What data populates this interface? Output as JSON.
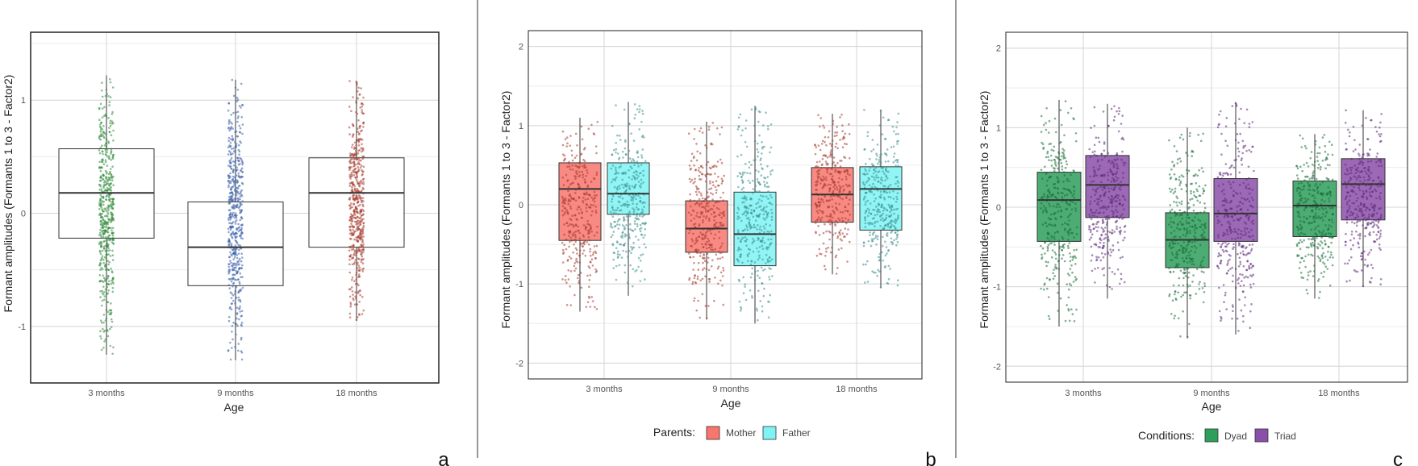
{
  "chart_data": [
    {
      "panel_label": "a",
      "type": "boxplot",
      "xlabel": "Age",
      "ylabel": "Formant amplitudes (Formants 1 to 3 - Factor2)",
      "categories": [
        "3 months",
        "9 months",
        "18 months"
      ],
      "yticks": [
        -1,
        0,
        1
      ],
      "ytick_labels": [
        "-1",
        "0",
        "1"
      ],
      "ylim": [
        -1.5,
        1.6
      ],
      "grid": true,
      "series": [
        {
          "name": "",
          "box_fill": "none",
          "point_color": "#2e8b3a",
          "point_colors": [
            "#2e8b3a",
            "#3a5fa8",
            "#a53a2e"
          ],
          "stats": [
            {
              "q1": -0.22,
              "median": 0.18,
              "q3": 0.57,
              "min": -1.25,
              "max": 1.22
            },
            {
              "q1": -0.64,
              "median": -0.3,
              "q3": 0.1,
              "min": -1.3,
              "max": 1.18
            },
            {
              "q1": -0.3,
              "median": 0.18,
              "q3": 0.49,
              "min": -0.95,
              "max": 1.17
            }
          ]
        }
      ]
    },
    {
      "panel_label": "b",
      "type": "boxplot",
      "xlabel": "Age",
      "ylabel": "Formant amplitudes (Formants 1 to 3 - Factor2)",
      "categories": [
        "3 months",
        "9 months",
        "18 months"
      ],
      "yticks": [
        -2,
        -1,
        0,
        1,
        2
      ],
      "ytick_labels": [
        "-2",
        "-1",
        "0",
        "1",
        "2"
      ],
      "ylim": [
        -2.2,
        2.2
      ],
      "grid": true,
      "legend_title": "Parents:",
      "legend_position": "bottom",
      "series": [
        {
          "name": "Mother",
          "box_fill": "#f8766d",
          "point_color": "#a53a2e",
          "stats": [
            {
              "q1": -0.45,
              "median": 0.2,
              "q3": 0.53,
              "min": -1.35,
              "max": 1.1
            },
            {
              "q1": -0.6,
              "median": -0.3,
              "q3": 0.05,
              "min": -1.45,
              "max": 1.05
            },
            {
              "q1": -0.22,
              "median": 0.13,
              "q3": 0.47,
              "min": -0.88,
              "max": 1.15
            }
          ]
        },
        {
          "name": "Father",
          "box_fill": "#7ff3f3",
          "point_color": "#3b8e8e",
          "stats": [
            {
              "q1": -0.12,
              "median": 0.14,
              "q3": 0.53,
              "min": -1.15,
              "max": 1.3
            },
            {
              "q1": -0.77,
              "median": -0.37,
              "q3": 0.16,
              "min": -1.5,
              "max": 1.25
            },
            {
              "q1": -0.32,
              "median": 0.2,
              "q3": 0.48,
              "min": -1.05,
              "max": 1.2
            }
          ]
        }
      ]
    },
    {
      "panel_label": "c",
      "type": "boxplot",
      "xlabel": "Age",
      "ylabel": "Formant amplitudes (Formants 1 to 3 - Factor2)",
      "categories": [
        "3 months",
        "9 months",
        "18 months"
      ],
      "yticks": [
        -2,
        -1,
        0,
        1,
        2
      ],
      "ytick_labels": [
        "-2",
        "-1",
        "0",
        "1",
        "2"
      ],
      "ylim": [
        -2.2,
        2.2
      ],
      "grid": true,
      "legend_title": "Conditions:",
      "legend_position": "bottom",
      "series": [
        {
          "name": "Dyad",
          "box_fill": "#2e9e5b",
          "point_color": "#1a6e38",
          "stats": [
            {
              "q1": -0.43,
              "median": 0.09,
              "q3": 0.44,
              "min": -1.5,
              "max": 1.35
            },
            {
              "q1": -0.76,
              "median": -0.41,
              "q3": -0.07,
              "min": -1.65,
              "max": 1.0
            },
            {
              "q1": -0.37,
              "median": 0.02,
              "q3": 0.33,
              "min": -1.15,
              "max": 0.92
            }
          ]
        },
        {
          "name": "Triad",
          "box_fill": "#8a4fa8",
          "point_color": "#5e2a7a",
          "stats": [
            {
              "q1": -0.13,
              "median": 0.28,
              "q3": 0.65,
              "min": -1.15,
              "max": 1.3
            },
            {
              "q1": -0.43,
              "median": -0.08,
              "q3": 0.36,
              "min": -1.6,
              "max": 1.32
            },
            {
              "q1": -0.16,
              "median": 0.29,
              "q3": 0.61,
              "min": -1.0,
              "max": 1.22
            }
          ]
        }
      ]
    }
  ]
}
